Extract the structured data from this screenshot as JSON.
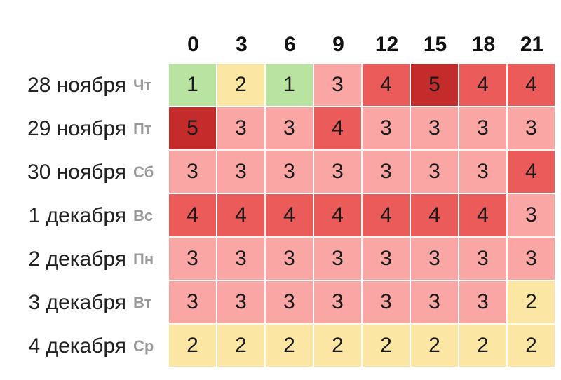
{
  "colors": {
    "1": "#b9e3a1",
    "2": "#fbe6a3",
    "3": "#f9a6a4",
    "4": "#ea5b5a",
    "5": "#c42b2b"
  },
  "chart_data": {
    "type": "heatmap",
    "x": [
      "0",
      "3",
      "6",
      "9",
      "12",
      "15",
      "18",
      "21"
    ],
    "rows": [
      {
        "date": "28 ноября",
        "dow": "Чт",
        "values": [
          1,
          2,
          1,
          3,
          4,
          5,
          4,
          4
        ]
      },
      {
        "date": "29 ноября",
        "dow": "Пт",
        "values": [
          5,
          3,
          3,
          4,
          3,
          3,
          3,
          3
        ]
      },
      {
        "date": "30 ноября",
        "dow": "Сб",
        "values": [
          3,
          3,
          3,
          3,
          3,
          3,
          3,
          4
        ]
      },
      {
        "date": "1 декабря",
        "dow": "Вс",
        "values": [
          4,
          4,
          4,
          4,
          4,
          4,
          4,
          3
        ]
      },
      {
        "date": "2 декабря",
        "dow": "Пн",
        "values": [
          3,
          3,
          3,
          3,
          3,
          3,
          3,
          3
        ]
      },
      {
        "date": "3 декабря",
        "dow": "Вт",
        "values": [
          3,
          3,
          3,
          3,
          3,
          3,
          3,
          2
        ]
      },
      {
        "date": "4 декабря",
        "dow": "Ср",
        "values": [
          2,
          2,
          2,
          2,
          2,
          2,
          2,
          2
        ]
      }
    ]
  }
}
